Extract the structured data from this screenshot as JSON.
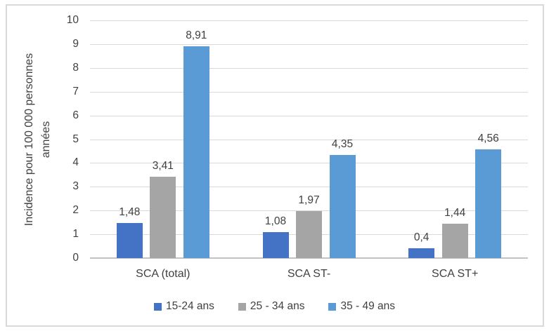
{
  "chart_data": {
    "type": "bar",
    "title": "",
    "ylabel": "Incidence pour 100 000 personnes années",
    "ylabel_lines": [
      "Incidence pour 100 000 personnes",
      "années"
    ],
    "xlabel": "",
    "categories": [
      "SCA (total)",
      "SCA ST-",
      "SCA ST+"
    ],
    "series": [
      {
        "name": "15-24 ans",
        "color": "#4472C4",
        "values": [
          1.48,
          1.08,
          0.4
        ],
        "labels": [
          "1,48",
          "1,08",
          "0,4"
        ]
      },
      {
        "name": "25 - 34 ans",
        "color": "#A5A5A5",
        "values": [
          3.41,
          1.97,
          1.44
        ],
        "labels": [
          "3,41",
          "1,97",
          "1,44"
        ]
      },
      {
        "name": "35 - 49 ans",
        "color": "#5B9BD5",
        "values": [
          8.91,
          4.35,
          4.56
        ],
        "labels": [
          "8,91",
          "4,35",
          "4,56"
        ]
      }
    ],
    "ylim": [
      0,
      10
    ],
    "yticks": [
      "0",
      "1",
      "2",
      "3",
      "4",
      "5",
      "6",
      "7",
      "8",
      "9",
      "10"
    ],
    "grid": true,
    "legend_position": "bottom"
  },
  "colors": {
    "gridline": "#D9D9D9",
    "axis_line": "#C3C3C3",
    "text": "#404040",
    "frame_border": "#D9D9D9",
    "background": "#FFFFFF"
  }
}
